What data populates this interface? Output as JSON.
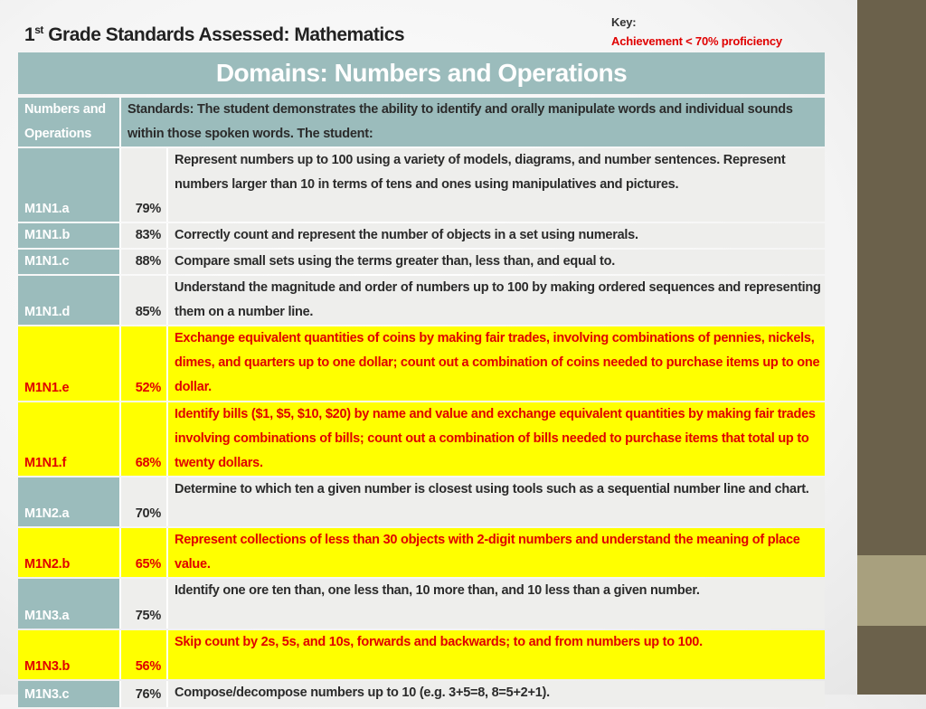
{
  "title": {
    "main": "Grade Standards Assessed: Mathematics",
    "prefix": "1",
    "sup": "st"
  },
  "key": {
    "label": "Key:",
    "legend": "Achievement  < 70% proficiency",
    "legend_color": "#e00000",
    "highlight_color": "#ffff00"
  },
  "domain_title": "Domains: Numbers and Operations",
  "header": {
    "col1": "Numbers and Operations",
    "col2": "Standards:  The student demonstrates the ability to identify and orally manipulate words and individual sounds within those spoken words. The student:"
  },
  "rows": [
    {
      "code": "M1N1.a",
      "pct": "79%",
      "low": false,
      "desc": "Represent numbers up to 100 using a variety of models, diagrams, and number sentences. Represent numbers larger than 10 in terms of tens and ones using manipulatives and pictures."
    },
    {
      "code": "M1N1.b",
      "pct": "83%",
      "low": false,
      "desc": "Correctly count and represent the number of objects in a set using numerals."
    },
    {
      "code": "M1N1.c",
      "pct": "88%",
      "low": false,
      "desc": "Compare  small sets using the terms greater than, less than, and equal to."
    },
    {
      "code": "M1N1.d",
      "pct": "85%",
      "low": false,
      "desc": "Understand the magnitude and order of numbers up to 100 by making ordered sequences and representing them on a number line."
    },
    {
      "code": "M1N1.e",
      "pct": "52%",
      "low": true,
      "desc": "Exchange equivalent quantities of coins by making fair trades, involving combinations of pennies, nickels, dimes, and quarters up to one dollar; count out a combination of coins needed to purchase items up to one dollar."
    },
    {
      "code": "M1N1.f",
      "pct": "68%",
      "low": true,
      "desc": "Identify bills ($1, $5, $10, $20) by name and value and exchange equivalent quantities by making fair trades involving combinations of bills; count out a combination of bills needed to purchase items that total up to twenty dollars."
    },
    {
      "code": "M1N2.a",
      "pct": "70%",
      "low": false,
      "desc": "Determine to which ten a given number is closest using tools such as a sequential number line and chart."
    },
    {
      "code": "M1N2.b",
      "pct": "65%",
      "low": true,
      "desc": "Represent collections of less than 30 objects with 2-digit numbers and understand the meaning of place value."
    },
    {
      "code": "M1N3.a",
      "pct": "75%",
      "low": false,
      "desc": "Identify one ore ten than, one less than, 10 more than, and 10 less than a given number."
    },
    {
      "code": "M1N3.b",
      "pct": "56%",
      "low": true,
      "desc": "Skip count by 2s, 5s, and 10s, forwards and backwards; to and from numbers up to 100."
    },
    {
      "code": "M1N3.c",
      "pct": "76%",
      "low": false,
      "desc": "Compose/decompose numbers up to 10 (e.g. 3+5=8, 8=5+2+1)."
    }
  ]
}
